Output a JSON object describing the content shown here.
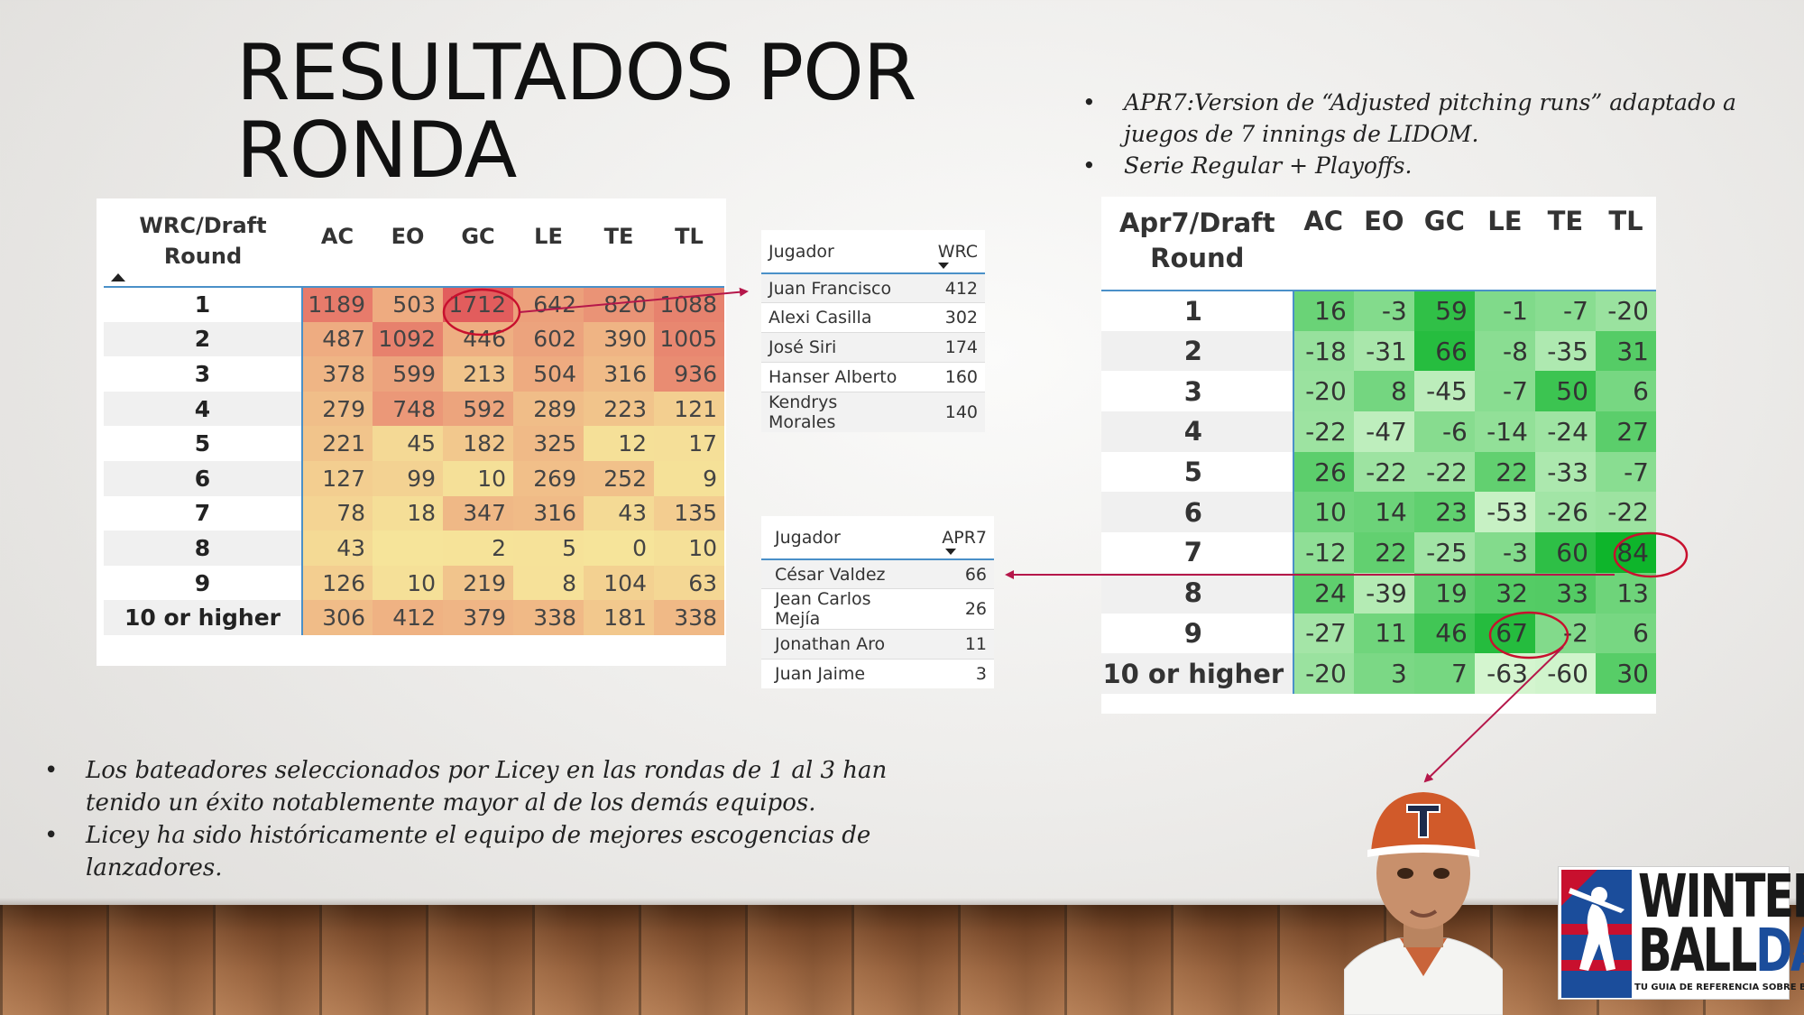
{
  "slide": {
    "title_lines": [
      "RESULTADOS POR",
      "RONDA"
    ],
    "right_bullets": [
      "APR7:Version de “Adjusted pitching runs” adaptado a juegos de 7 innings de LIDOM.",
      "Serie Regular + Playoffs."
    ],
    "left_bullets": [
      "Los bateadores seleccionados por Licey en las rondas de 1 al 3 han tenido un éxito notablemente mayor al de los demás equipos.",
      "Licey ha sido históricamente el equipo de mejores escogencias de lanzadores."
    ]
  },
  "wrc_table": {
    "corner_lines": [
      "WRC/Draft",
      "Round"
    ],
    "columns": [
      "AC",
      "EO",
      "GC",
      "LE",
      "TE",
      "TL"
    ],
    "rows": [
      {
        "label": "1",
        "values": [
          "1189",
          "503",
          "1712",
          "642",
          "820",
          "1088"
        ]
      },
      {
        "label": "2",
        "values": [
          "487",
          "1092",
          "446",
          "602",
          "390",
          "1005"
        ]
      },
      {
        "label": "3",
        "values": [
          "378",
          "599",
          "213",
          "504",
          "316",
          "936"
        ]
      },
      {
        "label": "4",
        "values": [
          "279",
          "748",
          "592",
          "289",
          "223",
          "121"
        ]
      },
      {
        "label": "5",
        "values": [
          "221",
          "45",
          "182",
          "325",
          "12",
          "17"
        ]
      },
      {
        "label": "6",
        "values": [
          "127",
          "99",
          "10",
          "269",
          "252",
          "9"
        ]
      },
      {
        "label": "7",
        "values": [
          "78",
          "18",
          "347",
          "316",
          "43",
          "135"
        ]
      },
      {
        "label": "8",
        "values": [
          "43",
          "",
          "2",
          "5",
          "0",
          "10"
        ]
      },
      {
        "label": "9",
        "values": [
          "126",
          "10",
          "219",
          "8",
          "104",
          "63"
        ]
      },
      {
        "label": "10 or higher",
        "values": [
          "306",
          "412",
          "379",
          "338",
          "181",
          "338"
        ]
      }
    ]
  },
  "wrc_top": {
    "headers": [
      "Jugador",
      "WRC"
    ],
    "rows": [
      {
        "name": "Juan Francisco",
        "value": "412"
      },
      {
        "name": "Alexi Casilla",
        "value": "302"
      },
      {
        "name": "José Siri",
        "value": "174"
      },
      {
        "name": "Hanser Alberto",
        "value": "160"
      },
      {
        "name": "Kendrys Morales",
        "value": "140"
      }
    ]
  },
  "apr_top": {
    "headers": [
      "Jugador",
      "APR7"
    ],
    "rows": [
      {
        "name": "César Valdez",
        "value": "66"
      },
      {
        "name": "Jean Carlos Mejía",
        "value": "26"
      },
      {
        "name": "Jonathan Aro",
        "value": "11"
      },
      {
        "name": "Juan Jaime",
        "value": "3"
      }
    ]
  },
  "apr_table": {
    "corner_lines": [
      "Apr7/Draft",
      "Round"
    ],
    "columns": [
      "AC",
      "EO",
      "GC",
      "LE",
      "TE",
      "TL"
    ],
    "rows": [
      {
        "label": "1",
        "values": [
          "16",
          "-3",
          "59",
          "-1",
          "-7",
          "-20"
        ]
      },
      {
        "label": "2",
        "values": [
          "-18",
          "-31",
          "66",
          "-8",
          "-35",
          "31"
        ]
      },
      {
        "label": "3",
        "values": [
          "-20",
          "8",
          "-45",
          "-7",
          "50",
          "6"
        ]
      },
      {
        "label": "4",
        "values": [
          "-22",
          "-47",
          "-6",
          "-14",
          "-24",
          "27"
        ]
      },
      {
        "label": "5",
        "values": [
          "26",
          "-22",
          "-22",
          "22",
          "-33",
          "-7"
        ]
      },
      {
        "label": "6",
        "values": [
          "10",
          "14",
          "23",
          "-53",
          "-26",
          "-22"
        ]
      },
      {
        "label": "7",
        "values": [
          "-12",
          "22",
          "-25",
          "-3",
          "60",
          "84"
        ]
      },
      {
        "label": "8",
        "values": [
          "24",
          "-39",
          "19",
          "32",
          "33",
          "13"
        ]
      },
      {
        "label": "9",
        "values": [
          "-27",
          "11",
          "46",
          "67",
          "-2",
          "6"
        ]
      },
      {
        "label": "10 or higher",
        "values": [
          "-20",
          "3",
          "7",
          "-63",
          "-60",
          "30"
        ]
      }
    ]
  },
  "logo": {
    "line1": "WINTER",
    "line2a": "BALL",
    "line2b": "DATA",
    "tagline": "TU GUIA DE REFERENCIA SOBRE BEISBOL",
    "icon": "batter-silhouette-icon"
  },
  "colors": {
    "wrc_low": "#f6e49a",
    "wrc_high": "#e25d5d",
    "apr_low": "#d4f5cf",
    "apr_high": "#0eb52b",
    "highlight_ring": "#c8102e",
    "arrow": "#b5174a"
  }
}
